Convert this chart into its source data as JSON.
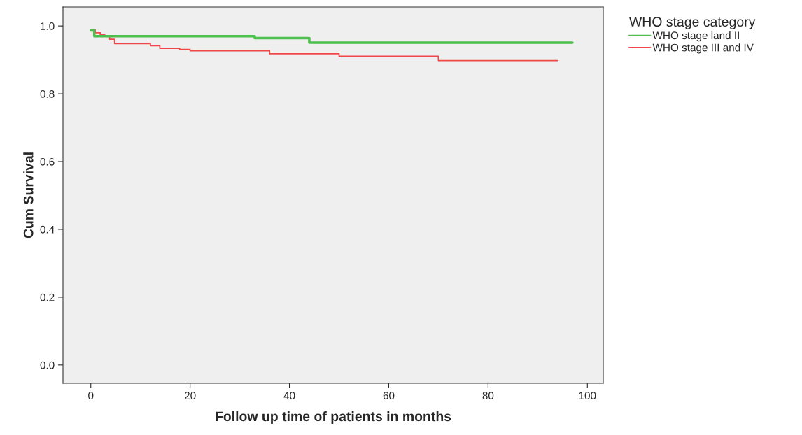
{
  "chart_data": {
    "type": "step",
    "xlabel": "Follow up time of patients in months",
    "ylabel": "Cum Survival",
    "legend_title": "WHO stage category",
    "legend": "right",
    "grid": false,
    "xlim": [
      -5.6,
      103.2
    ],
    "ylim": [
      -0.054,
      1.056
    ],
    "xticks": [
      0,
      20,
      40,
      60,
      80,
      100
    ],
    "yticks": [
      {
        "value": 0,
        "label": "0.0"
      },
      {
        "value": 0.2,
        "label": "0.2"
      },
      {
        "value": 0.4,
        "label": "0.4"
      },
      {
        "value": 0.6,
        "label": "0.6"
      },
      {
        "value": 0.8,
        "label": "0.8"
      },
      {
        "value": 1.0,
        "label": "1.0"
      }
    ],
    "series": [
      {
        "name": "WHO stage land II",
        "color": "#4cbf4c",
        "x": [
          0,
          0.7,
          33,
          44,
          97
        ],
        "values": [
          0.987,
          0.97,
          0.964,
          0.951,
          0.951
        ]
      },
      {
        "name": "WHO stage III and IV",
        "color": "#f04848",
        "x": [
          0,
          0.9,
          1.9,
          2.8,
          3.8,
          4.8,
          12,
          13.9,
          17.9,
          20,
          36,
          50,
          70,
          94
        ],
        "values": [
          0.988,
          0.98,
          0.975,
          0.969,
          0.961,
          0.948,
          0.942,
          0.934,
          0.931,
          0.927,
          0.918,
          0.911,
          0.898,
          0.898
        ]
      }
    ]
  }
}
